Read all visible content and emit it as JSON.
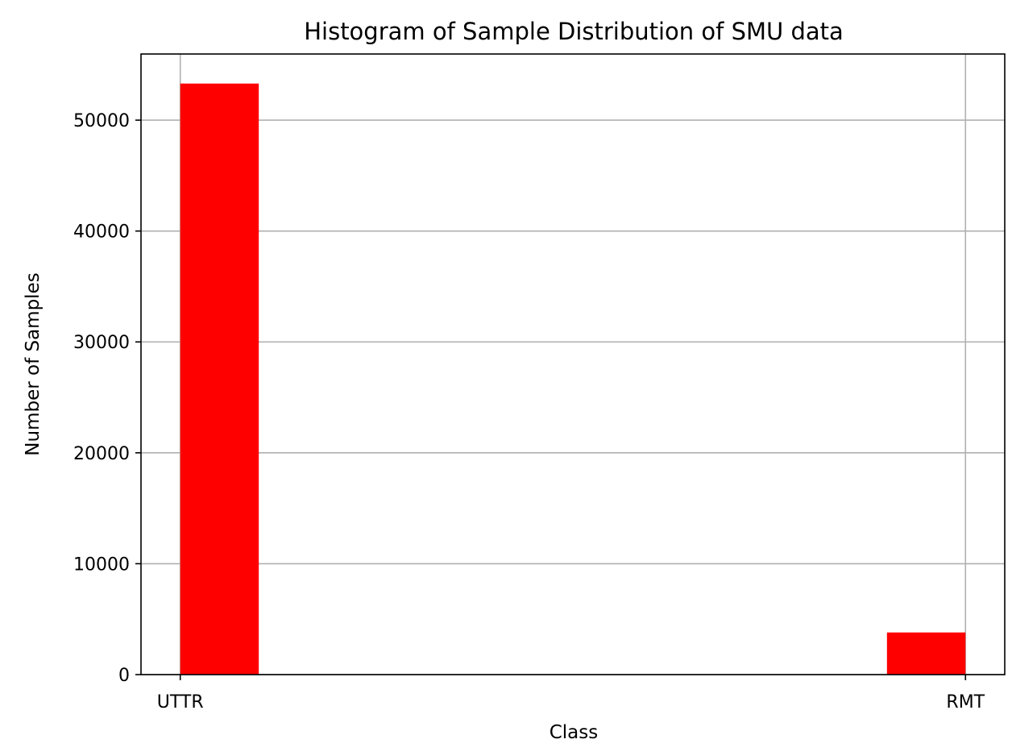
{
  "chart_data": {
    "type": "bar",
    "title": "Histogram of Sample Distribution of SMU data",
    "xlabel": "Class",
    "ylabel": "Number of Samples",
    "categories": [
      "UTTR",
      "RMT"
    ],
    "bins": [
      {
        "x_start": 0.0,
        "x_end": 0.1,
        "value": 53300
      },
      {
        "x_start": 0.9,
        "x_end": 1.0,
        "value": 3800
      }
    ],
    "xticks": [
      {
        "value": 0,
        "label": "UTTR"
      },
      {
        "value": 1,
        "label": "RMT"
      }
    ],
    "yticks": [
      {
        "value": 0,
        "label": "0"
      },
      {
        "value": 10000,
        "label": "10000"
      },
      {
        "value": 20000,
        "label": "20000"
      },
      {
        "value": 30000,
        "label": "30000"
      },
      {
        "value": 40000,
        "label": "40000"
      },
      {
        "value": 50000,
        "label": "50000"
      }
    ],
    "xlim": [
      -0.05,
      1.05
    ],
    "ylim": [
      0,
      55965
    ],
    "grid": true,
    "bar_color": "#ff0000",
    "grid_color": "#b0b0b0"
  }
}
